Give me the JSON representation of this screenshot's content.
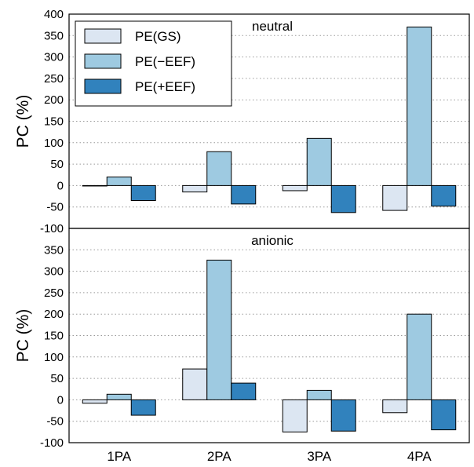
{
  "chart_data": [
    {
      "type": "bar",
      "title": "neutral",
      "ylabel": "PC (%)",
      "categories": [
        "1PA",
        "2PA",
        "3PA",
        "4PA"
      ],
      "ylim": [
        -100,
        400
      ],
      "yticks": [
        -100,
        -50,
        0,
        50,
        100,
        150,
        200,
        250,
        300,
        350,
        400
      ],
      "grid": "horizontal-dotted",
      "legend": "top-left",
      "series": [
        {
          "name": "PE(GS)",
          "color": "#dce6f2",
          "values": [
            0,
            -15,
            -12,
            -58
          ]
        },
        {
          "name": "PE(−EEF)",
          "color": "#9ecae1",
          "values": [
            20,
            79,
            110,
            370
          ]
        },
        {
          "name": "PE(+EEF)",
          "color": "#3182bd",
          "values": [
            -35,
            -43,
            -63,
            -48
          ]
        }
      ]
    },
    {
      "type": "bar",
      "title": "anionic",
      "ylabel": "PC (%)",
      "categories": [
        "1PA",
        "2PA",
        "3PA",
        "4PA"
      ],
      "ylim": [
        -100,
        400
      ],
      "yticks": [
        -100,
        -50,
        0,
        50,
        100,
        150,
        200,
        250,
        300,
        350
      ],
      "grid": "horizontal-dotted",
      "series": [
        {
          "name": "PE(GS)",
          "color": "#dce6f2",
          "values": [
            -8,
            72,
            -75,
            -30
          ]
        },
        {
          "name": "PE(−EEF)",
          "color": "#9ecae1",
          "values": [
            13,
            326,
            22,
            200
          ]
        },
        {
          "name": "PE(+EEF)",
          "color": "#3182bd",
          "values": [
            -36,
            39,
            -73,
            -70
          ]
        }
      ]
    }
  ]
}
